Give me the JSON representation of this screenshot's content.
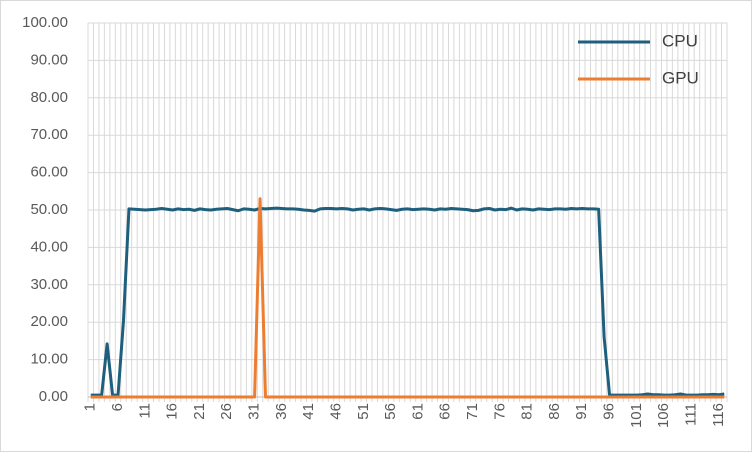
{
  "chart_data": {
    "type": "line",
    "categories": [
      1,
      null,
      null,
      null,
      null,
      6,
      null,
      null,
      null,
      null,
      11,
      null,
      null,
      null,
      null,
      16,
      null,
      null,
      null,
      null,
      21,
      null,
      null,
      null,
      null,
      26,
      null,
      null,
      null,
      null,
      31,
      null,
      null,
      null,
      null,
      36,
      null,
      null,
      null,
      null,
      41,
      null,
      null,
      null,
      null,
      46,
      null,
      null,
      null,
      null,
      51,
      null,
      null,
      null,
      null,
      56,
      null,
      null,
      null,
      null,
      61,
      null,
      null,
      null,
      null,
      66,
      null,
      null,
      null,
      null,
      71,
      null,
      null,
      null,
      null,
      76,
      null,
      null,
      null,
      null,
      81,
      null,
      null,
      null,
      null,
      86,
      null,
      null,
      null,
      null,
      91,
      null,
      null,
      null,
      null,
      96,
      null,
      null,
      null,
      null,
      101,
      null,
      null,
      null,
      null,
      106,
      null,
      null,
      null,
      null,
      111,
      null,
      null,
      null,
      null,
      116,
      null
    ],
    "series": [
      {
        "name": "CPU",
        "color": "#1d5f7c",
        "values": [
          0.5,
          0.5,
          0.5,
          14.2,
          0.5,
          0.5,
          20.5,
          50.3,
          50.2,
          50.1,
          50.0,
          50.1,
          50.2,
          50.4,
          50.2,
          50.0,
          50.3,
          50.1,
          50.2,
          49.9,
          50.3,
          50.1,
          50.0,
          50.2,
          50.3,
          50.4,
          50.1,
          49.8,
          50.3,
          50.2,
          50.0,
          50.4,
          50.3,
          50.4,
          50.5,
          50.4,
          50.3,
          50.3,
          50.2,
          50.0,
          49.9,
          49.7,
          50.3,
          50.4,
          50.4,
          50.3,
          50.4,
          50.3,
          50.0,
          50.2,
          50.3,
          50.0,
          50.3,
          50.4,
          50.3,
          50.1,
          49.9,
          50.2,
          50.3,
          50.1,
          50.2,
          50.3,
          50.2,
          50.0,
          50.3,
          50.2,
          50.4,
          50.3,
          50.2,
          50.1,
          49.8,
          49.9,
          50.3,
          50.4,
          50.0,
          50.2,
          50.1,
          50.5,
          50.0,
          50.3,
          50.2,
          50.0,
          50.3,
          50.2,
          50.1,
          50.3,
          50.3,
          50.2,
          50.4,
          50.3,
          50.4,
          50.3,
          50.3,
          50.2,
          16.0,
          0.5,
          0.5,
          0.5,
          0.5,
          0.5,
          0.5,
          0.6,
          0.8,
          0.6,
          0.6,
          0.5,
          0.5,
          0.6,
          0.8,
          0.5,
          0.5,
          0.5,
          0.6,
          0.6,
          0.7,
          0.6,
          0.8
        ]
      },
      {
        "name": "GPU",
        "color": "#ed7d31",
        "values": [
          0,
          0,
          0,
          0,
          0,
          0,
          0,
          0,
          0,
          0,
          0,
          0,
          0,
          0,
          0,
          0,
          0,
          0,
          0,
          0,
          0,
          0,
          0,
          0,
          0,
          0,
          0,
          0,
          0,
          0,
          0,
          53.0,
          0,
          0,
          0,
          0,
          0,
          0,
          0,
          0,
          0,
          0,
          0,
          0,
          0,
          0,
          0,
          0,
          0,
          0,
          0,
          0,
          0,
          0,
          0,
          0,
          0,
          0,
          0,
          0,
          0,
          0,
          0,
          0,
          0,
          0,
          0,
          0,
          0,
          0,
          0,
          0,
          0,
          0,
          0,
          0,
          0,
          0,
          0,
          0,
          0,
          0,
          0,
          0,
          0,
          0,
          0,
          0,
          0,
          0,
          0,
          0,
          0,
          0,
          0,
          0,
          0,
          0,
          0,
          0,
          0,
          0,
          0,
          0,
          0,
          0,
          0,
          0,
          0,
          0,
          0,
          0,
          0,
          0,
          0,
          0,
          0
        ]
      }
    ],
    "ylim": [
      0,
      100
    ],
    "yticks": [
      {
        "value": 0,
        "label": "0.00"
      },
      {
        "value": 10,
        "label": "10.00"
      },
      {
        "value": 20,
        "label": "20.00"
      },
      {
        "value": 30,
        "label": "30.00"
      },
      {
        "value": 40,
        "label": "40.00"
      },
      {
        "value": 50,
        "label": "50.00"
      },
      {
        "value": 60,
        "label": "60.00"
      },
      {
        "value": 70,
        "label": "70.00"
      },
      {
        "value": 80,
        "label": "80.00"
      },
      {
        "value": 90,
        "label": "90.00"
      },
      {
        "value": 100,
        "label": "100.00"
      }
    ],
    "grid": true,
    "legend": "upper-right"
  }
}
